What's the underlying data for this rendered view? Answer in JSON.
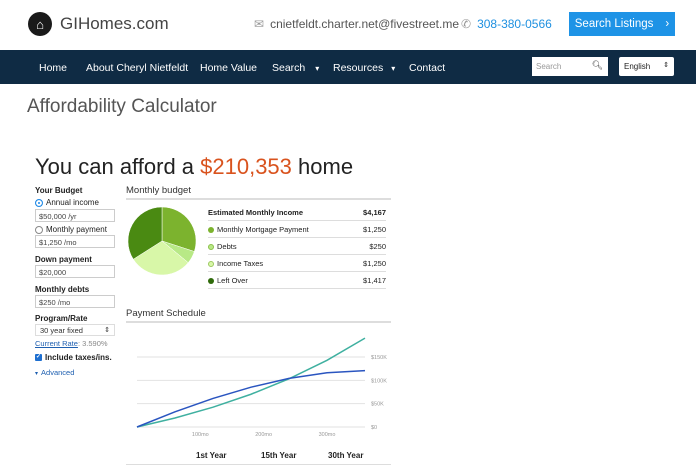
{
  "header": {
    "brand": "GIHomes.com",
    "email": "cnietfeldt.charter.net@fivestreet.me",
    "phone": "308-380-0566",
    "cta_label": "Search Listings"
  },
  "nav": {
    "items": [
      "Home",
      "About Cheryl Nietfeldt",
      "Home Value",
      "Search",
      "Resources",
      "Contact"
    ],
    "search_placeholder": "Search",
    "language": "English",
    "bg": "#0f2b44"
  },
  "page": {
    "title": "Affordability Calculator",
    "headline_pre": "You can afford a ",
    "headline_amount": "$210,353",
    "headline_post": " home"
  },
  "budget": {
    "title": "Your Budget",
    "annual_income_label": "Annual income",
    "annual_income_value": "$50,000 /yr",
    "annual_selected": true,
    "monthly_payment_label": "Monthly payment",
    "monthly_payment_value": "$1,250 /mo",
    "down_payment_label": "Down payment",
    "down_payment_value": "$20,000",
    "monthly_debts_label": "Monthly debts",
    "monthly_debts_value": "$250 /mo",
    "program_label": "Program/Rate",
    "program_value": "30 year fixed",
    "current_rate_link": "Current Rate",
    "current_rate_value": ": 3.590%",
    "include_taxes_label": "Include taxes/ins.",
    "include_taxes_checked": true,
    "advanced_label": "Advanced"
  },
  "monthly_budget": {
    "title": "Monthly budget",
    "total_label": "Estimated Monthly Income",
    "total_value": "$4,167",
    "items": [
      {
        "label": "Monthly Mortgage Payment",
        "value": "$1,250",
        "amount": 1250,
        "color": "#7cb32e"
      },
      {
        "label": "Debts",
        "value": "$250",
        "amount": 250,
        "color": "#b8e986"
      },
      {
        "label": "Income Taxes",
        "value": "$1,250",
        "amount": 1250,
        "color": "#d8f7a8"
      },
      {
        "label": "Left Over",
        "value": "$1,417",
        "amount": 1417,
        "color": "#4a8a12"
      }
    ]
  },
  "chart_data": {
    "type": "line",
    "title": "Payment Schedule",
    "x": [
      0,
      60,
      120,
      180,
      240,
      300,
      360
    ],
    "x_ticks": [
      "100mo",
      "200mo",
      "300mo"
    ],
    "y_ticks": [
      "$0",
      "$50K",
      "$100K",
      "$150K"
    ],
    "ylim": [
      0,
      190000
    ],
    "grid": true,
    "series": [
      {
        "color": "#3fb0a0",
        "values": [
          0,
          19300,
          42500,
          70200,
          103300,
          142900,
          190400
        ]
      },
      {
        "color": "#2a55c0",
        "values": [
          0,
          32500,
          61200,
          85300,
          104100,
          116300,
          120700
        ]
      }
    ]
  },
  "schedule_table": {
    "headers": [
      "1st Year",
      "15th Year",
      "30th Year"
    ]
  }
}
